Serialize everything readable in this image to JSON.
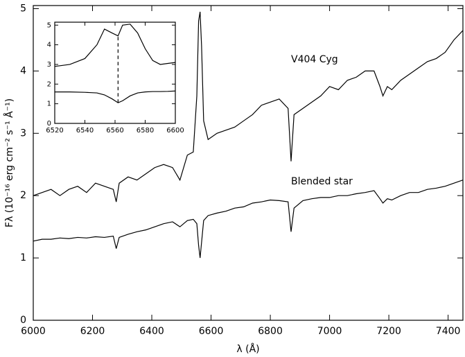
{
  "chart_data": [
    {
      "type": "line",
      "xlabel": "λ (Å)",
      "ylabel": "Fλ (10⁻¹⁶ erg cm⁻² s⁻¹ Å⁻¹)",
      "x": [
        6000,
        6030,
        6060,
        6090,
        6120,
        6150,
        6180,
        6210,
        6240,
        6270,
        6280,
        6290,
        6320,
        6350,
        6380,
        6410,
        6440,
        6470,
        6495,
        6520,
        6540,
        6552,
        6558,
        6563,
        6568,
        6575,
        6590,
        6620,
        6650,
        6680,
        6710,
        6740,
        6770,
        6800,
        6830,
        6860,
        6870,
        6880,
        6910,
        6940,
        6970,
        7000,
        7030,
        7060,
        7090,
        7120,
        7150,
        7170,
        7180,
        7195,
        7210,
        7240,
        7270,
        7300,
        7330,
        7360,
        7390,
        7420,
        7450
      ],
      "series": [
        {
          "name": "V404 Cyg",
          "color": "#000000",
          "values": [
            2.0,
            2.05,
            2.1,
            2.0,
            2.1,
            2.15,
            2.05,
            2.2,
            2.15,
            2.1,
            1.9,
            2.2,
            2.3,
            2.25,
            2.35,
            2.45,
            2.5,
            2.45,
            2.25,
            2.65,
            2.7,
            3.6,
            4.8,
            4.95,
            4.4,
            3.2,
            2.9,
            3.0,
            3.05,
            3.1,
            3.2,
            3.3,
            3.45,
            3.5,
            3.55,
            3.4,
            2.55,
            3.3,
            3.4,
            3.5,
            3.6,
            3.75,
            3.7,
            3.85,
            3.9,
            4.0,
            4.0,
            3.75,
            3.6,
            3.75,
            3.7,
            3.85,
            3.95,
            4.05,
            4.15,
            4.2,
            4.3,
            4.5,
            4.65
          ]
        },
        {
          "name": "Blended star",
          "color": "#000000",
          "values": [
            1.27,
            1.3,
            1.3,
            1.32,
            1.31,
            1.33,
            1.32,
            1.34,
            1.33,
            1.35,
            1.15,
            1.33,
            1.38,
            1.42,
            1.45,
            1.5,
            1.55,
            1.58,
            1.5,
            1.6,
            1.62,
            1.55,
            1.2,
            1.0,
            1.25,
            1.6,
            1.68,
            1.72,
            1.75,
            1.8,
            1.82,
            1.88,
            1.9,
            1.93,
            1.92,
            1.9,
            1.42,
            1.8,
            1.92,
            1.95,
            1.97,
            1.97,
            2.0,
            2.0,
            2.03,
            2.05,
            2.08,
            1.95,
            1.88,
            1.95,
            1.93,
            2.0,
            2.05,
            2.05,
            2.1,
            2.12,
            2.15,
            2.2,
            2.25
          ]
        }
      ],
      "xlim": [
        6000,
        7450
      ],
      "xticks": [
        6000,
        6200,
        6400,
        6600,
        6800,
        7000,
        7200,
        7400
      ],
      "ylim": [
        0,
        5.05
      ],
      "yticks": [
        0,
        1,
        2,
        3,
        4,
        5
      ]
    },
    {
      "type": "line",
      "x": [
        6520,
        6530,
        6540,
        6548,
        6553,
        6558,
        6562,
        6565,
        6570,
        6575,
        6580,
        6585,
        6590,
        6595,
        6600
      ],
      "series": [
        {
          "color": "#000000",
          "values": [
            2.9,
            3.0,
            3.3,
            4.0,
            4.8,
            4.6,
            4.45,
            5.0,
            5.05,
            4.6,
            3.8,
            3.2,
            3.0,
            3.05,
            3.1
          ]
        },
        {
          "color": "#000000",
          "values": [
            1.6,
            1.6,
            1.58,
            1.55,
            1.45,
            1.25,
            1.05,
            1.15,
            1.4,
            1.55,
            1.6,
            1.62,
            1.62,
            1.63,
            1.65
          ]
        }
      ],
      "vline": 6562,
      "xlim": [
        6520,
        6600
      ],
      "xticks": [
        6520,
        6540,
        6560,
        6580,
        6600
      ],
      "ylim": [
        0,
        5.15
      ],
      "yticks": [
        0,
        1,
        2,
        3,
        4,
        5
      ]
    }
  ]
}
